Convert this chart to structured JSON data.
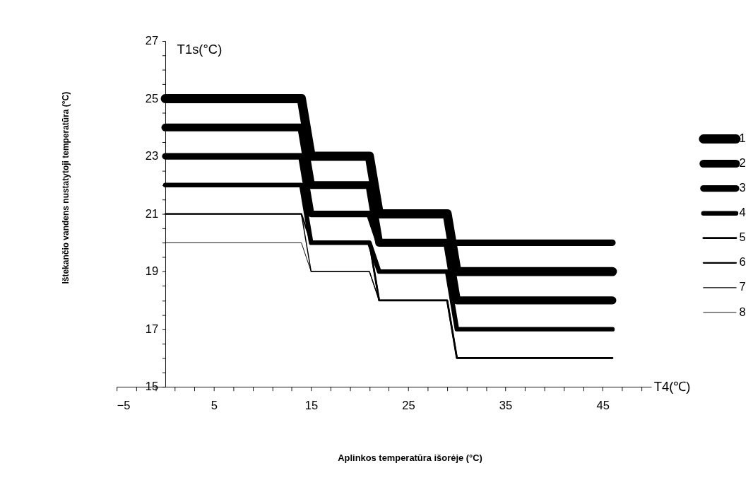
{
  "chart_data": {
    "type": "line",
    "xlabel": "T4(℃)",
    "ylabel": "T1s(°C)",
    "annotations": [
      "Aplinkos temperatūra išorėje (°C)",
      "Ištekančio vandens nustatytoji temperatūra (°C)"
    ],
    "xlim": [
      -5,
      50
    ],
    "ylim": [
      15,
      27
    ],
    "xticks": [
      -5,
      {
        "value": -3,
        "label": null
      },
      {
        "value": -1,
        "label": null
      },
      {
        "value": 1,
        "label": null
      },
      {
        "value": 3,
        "label": null
      },
      5,
      {
        "value": 7,
        "label": null
      },
      {
        "value": 9,
        "label": null
      },
      {
        "value": 11,
        "label": null
      },
      {
        "value": 13,
        "label": null
      },
      15,
      {
        "value": 17,
        "label": null
      },
      {
        "value": 19,
        "label": null
      },
      {
        "value": 21,
        "label": null
      },
      {
        "value": 23,
        "label": null
      },
      25,
      {
        "value": 27,
        "label": null
      },
      {
        "value": 29,
        "label": null
      },
      {
        "value": 31,
        "label": null
      },
      {
        "value": 33,
        "label": null
      },
      35,
      {
        "value": 37,
        "label": null
      },
      {
        "value": 39,
        "label": null
      },
      {
        "value": 41,
        "label": null
      },
      {
        "value": 43,
        "label": null
      },
      45,
      {
        "value": 47,
        "label": null
      },
      {
        "value": 49,
        "label": null
      }
    ],
    "yticks": [
      15,
      {
        "value": 15.5,
        "label": null
      },
      {
        "value": 16,
        "label": null
      },
      {
        "value": 16.5,
        "label": null
      },
      17,
      {
        "value": 17.5,
        "label": null
      },
      {
        "value": 18,
        "label": null
      },
      {
        "value": 18.5,
        "label": null
      },
      19,
      {
        "value": 19.5,
        "label": null
      },
      {
        "value": 20,
        "label": null
      },
      {
        "value": 20.5,
        "label": null
      },
      21,
      {
        "value": 21.5,
        "label": null
      },
      {
        "value": 22,
        "label": null
      },
      {
        "value": 22.5,
        "label": null
      },
      23,
      {
        "value": 23.5,
        "label": null
      },
      {
        "value": 24,
        "label": null
      },
      {
        "value": 24.5,
        "label": null
      },
      25,
      {
        "value": 25.5,
        "label": null
      },
      {
        "value": 26,
        "label": null
      },
      {
        "value": 26.5,
        "label": null
      },
      27
    ],
    "grid": false,
    "legend": "right",
    "line_style": "solid",
    "series": [
      {
        "name": "1",
        "color": "#000000",
        "x": [
          0,
          14,
          15,
          21,
          22,
          29,
          30,
          46
        ],
        "values": [
          25,
          25,
          23,
          23,
          21,
          21,
          19,
          19
        ]
      },
      {
        "name": "2",
        "color": "#000000",
        "x": [
          0,
          14,
          15,
          21,
          22,
          29,
          30,
          46
        ],
        "values": [
          24,
          24,
          22,
          22,
          20,
          20,
          18,
          18
        ]
      },
      {
        "name": "3",
        "color": "#000000",
        "x": [
          0,
          14,
          15,
          21,
          22,
          29,
          30,
          46
        ],
        "values": [
          23,
          23,
          21,
          21,
          20,
          20,
          20,
          20
        ]
      },
      {
        "name": "4",
        "color": "#000000",
        "x": [
          0,
          14,
          15,
          21,
          22,
          29,
          30,
          46
        ],
        "values": [
          22,
          22,
          20,
          20,
          19,
          19,
          17,
          17
        ]
      },
      {
        "name": "5",
        "color": "#000000",
        "x": [
          0,
          14,
          15,
          21,
          22,
          29,
          30,
          46
        ],
        "values": [
          22,
          22,
          20,
          20,
          18,
          18,
          16,
          16
        ]
      },
      {
        "name": "6",
        "color": "#000000",
        "x": [
          0,
          14,
          15,
          21,
          22,
          29,
          30,
          46
        ],
        "values": [
          21,
          21,
          20,
          20,
          18,
          18,
          16,
          16
        ]
      },
      {
        "name": "7",
        "color": "#000000",
        "x": [
          0,
          14,
          15,
          21,
          22,
          29,
          30,
          46
        ],
        "values": [
          21,
          21,
          19,
          19,
          18,
          18,
          16,
          16
        ]
      },
      {
        "name": "8",
        "color": "#000000",
        "x": [
          0,
          14,
          15,
          21,
          22,
          29,
          30,
          46
        ],
        "values": [
          20,
          20,
          19,
          19,
          18,
          18,
          16,
          16
        ]
      }
    ]
  }
}
